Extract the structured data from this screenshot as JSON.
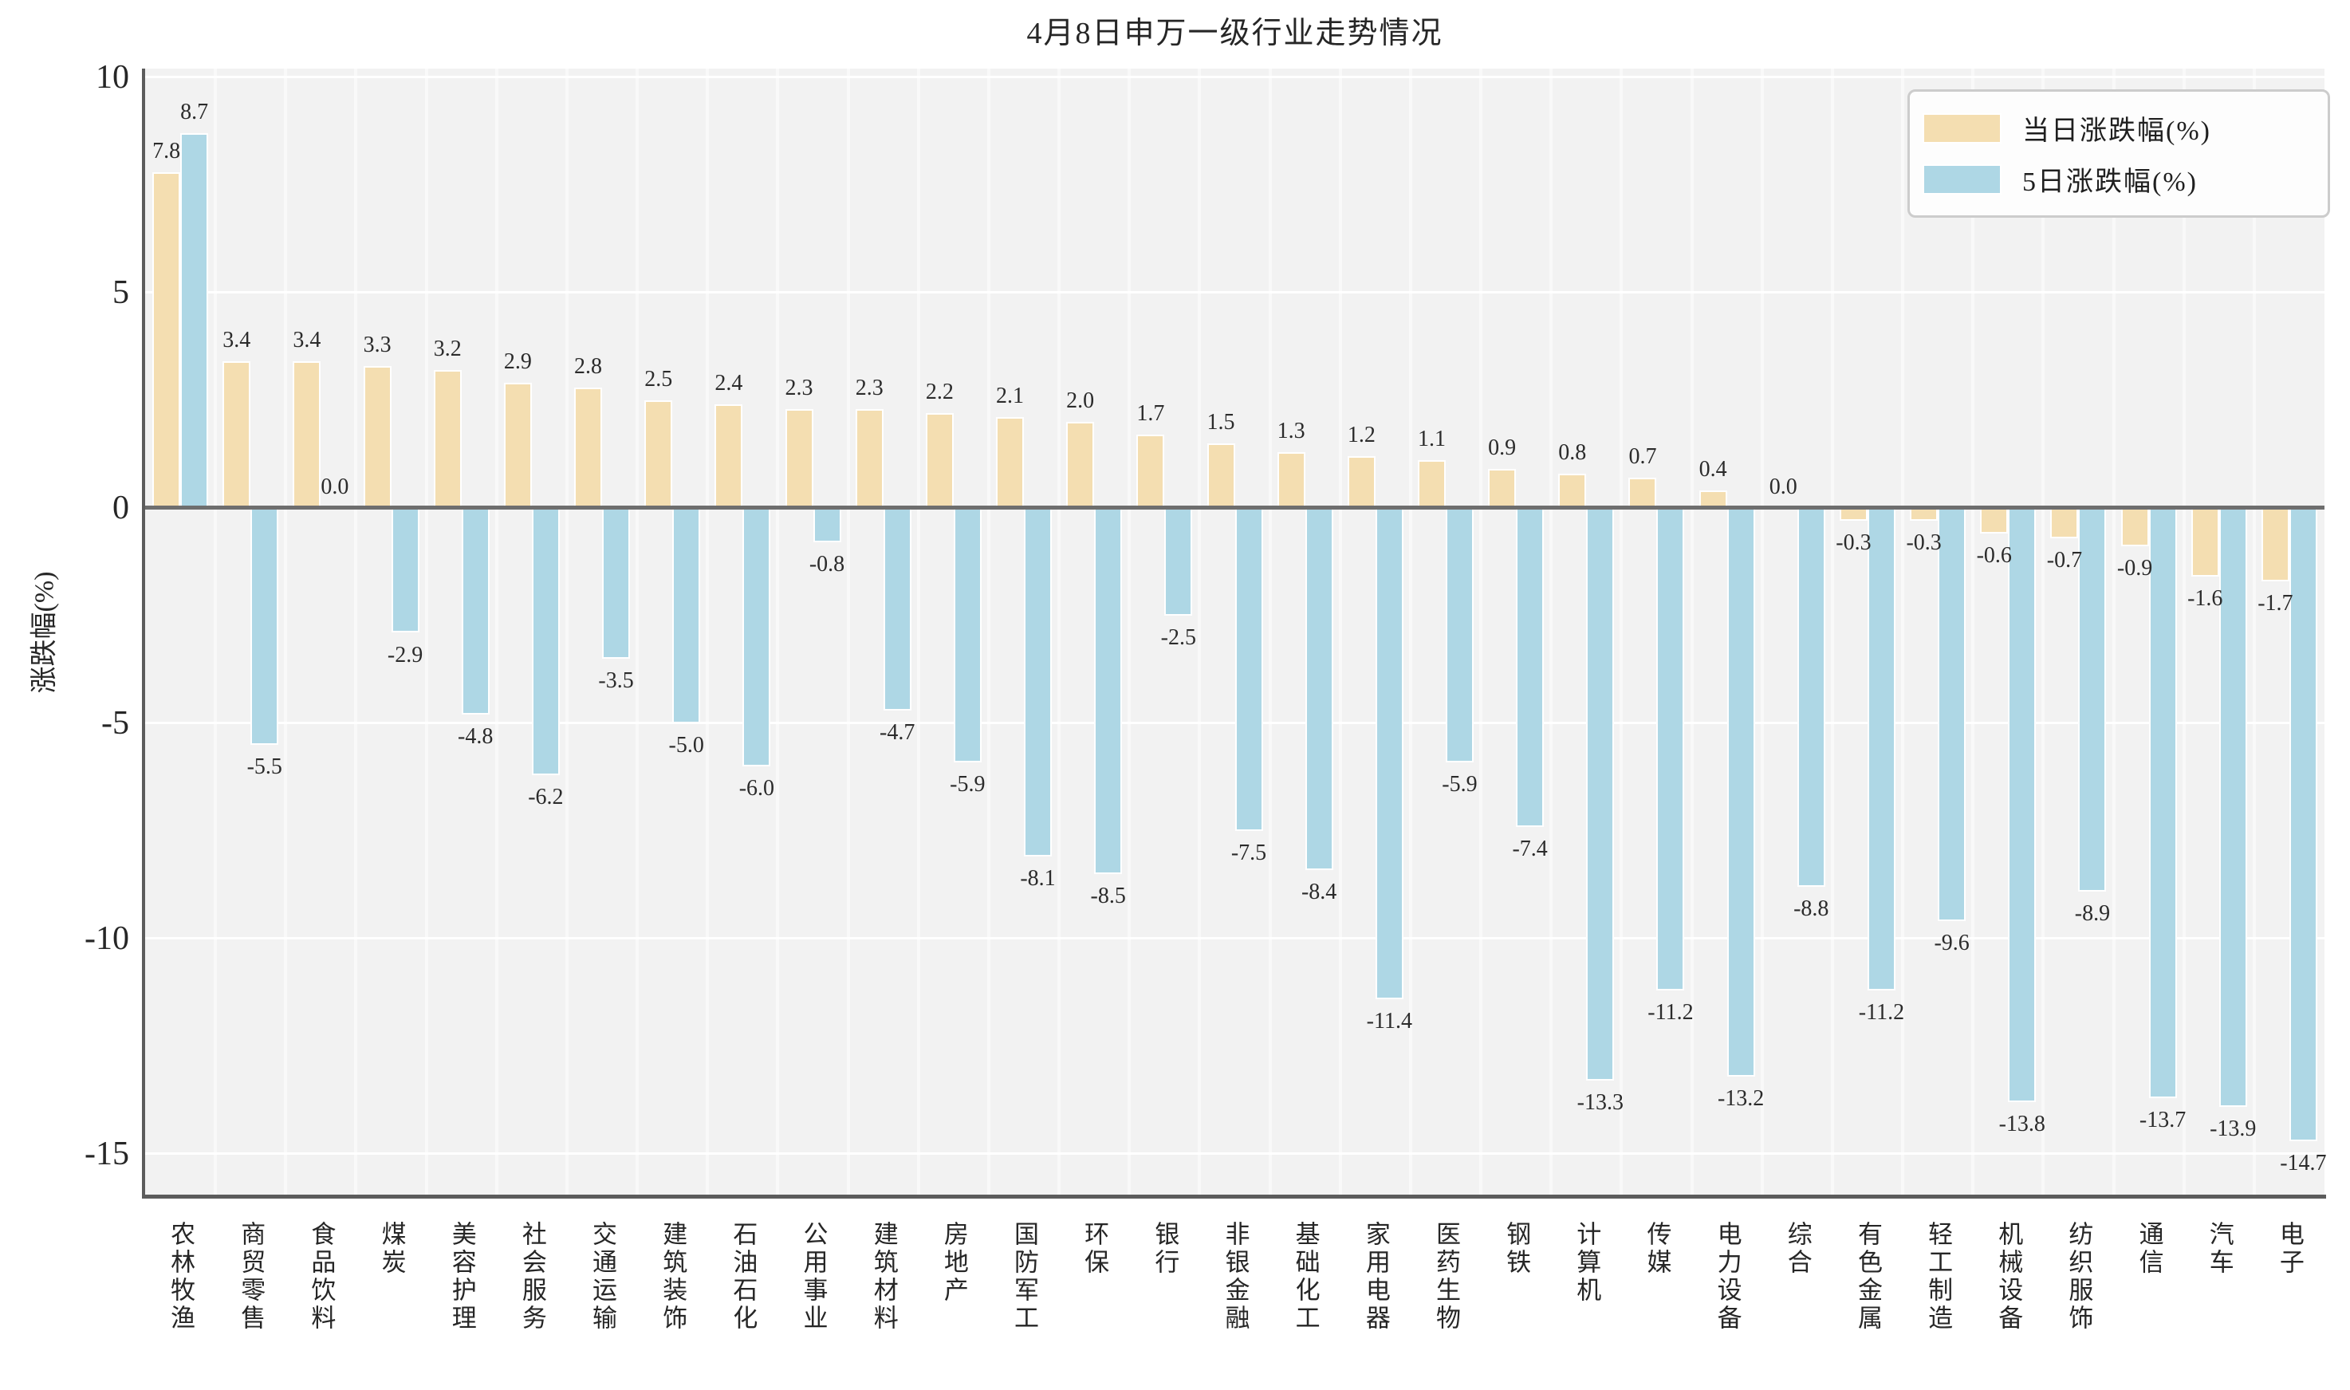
{
  "chart_data": {
    "type": "bar",
    "title": "4月8日申万一级行业走势情况",
    "xlabel": "",
    "ylabel": "涨跌幅(%)",
    "ylim": [
      -16.0,
      10.2
    ],
    "yticks": [
      10,
      5,
      0,
      -5,
      -10,
      -15
    ],
    "grid": true,
    "legend_position": "upper right",
    "plot_bg": "#f2f2f2",
    "categories": [
      "农林牧渔",
      "商贸零售",
      "食品饮料",
      "煤炭",
      "美容护理",
      "社会服务",
      "交通运输",
      "建筑装饰",
      "石油石化",
      "公用事业",
      "建筑材料",
      "房地产",
      "国防军工",
      "环保",
      "银行",
      "非银金融",
      "基础化工",
      "家用电器",
      "医药生物",
      "钢铁",
      "计算机",
      "传媒",
      "电力设备",
      "综合",
      "有色金属",
      "轻工制造",
      "机械设备",
      "纺织服饰",
      "通信",
      "汽车",
      "电子"
    ],
    "series": [
      {
        "name": "当日涨跌幅(%)",
        "color": "#f4deb1",
        "values": [
          7.8,
          3.4,
          3.4,
          3.3,
          3.2,
          2.9,
          2.8,
          2.5,
          2.4,
          2.3,
          2.3,
          2.2,
          2.1,
          2.0,
          1.7,
          1.5,
          1.3,
          1.2,
          1.1,
          0.9,
          0.8,
          0.7,
          0.4,
          0.0,
          -0.3,
          -0.3,
          -0.6,
          -0.7,
          -0.9,
          -1.6,
          -1.7
        ]
      },
      {
        "name": "5日涨跌幅(%)",
        "color": "#aed7e5",
        "values": [
          8.7,
          -5.5,
          0.0,
          -2.9,
          -4.8,
          -6.2,
          -3.5,
          -5.0,
          -6.0,
          -0.8,
          -4.7,
          -5.9,
          -8.1,
          -8.5,
          -2.5,
          -7.5,
          -8.4,
          -11.4,
          -5.9,
          -7.4,
          -13.3,
          -11.2,
          -13.2,
          -8.8,
          -11.2,
          -9.6,
          -13.8,
          -8.9,
          -13.7,
          -13.9,
          -14.7
        ]
      }
    ]
  }
}
